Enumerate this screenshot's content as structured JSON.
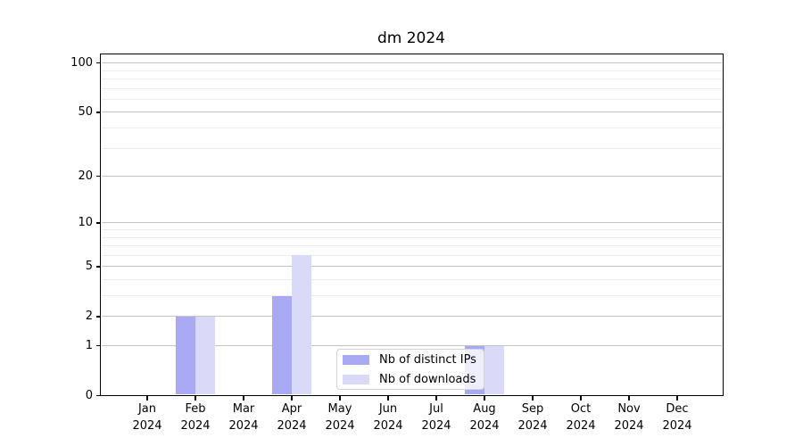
{
  "chart_data": {
    "type": "bar",
    "title": "dm 2024",
    "categories": [
      "Jan",
      "Feb",
      "Mar",
      "Apr",
      "May",
      "Jun",
      "Jul",
      "Aug",
      "Sep",
      "Oct",
      "Nov",
      "Dec"
    ],
    "x_tick_year": "2024",
    "series": [
      {
        "name": "Nb of distinct IPs",
        "color": "#a8a8f3",
        "values": [
          0,
          2,
          0,
          3,
          0,
          0,
          0,
          1,
          0,
          0,
          0,
          0
        ]
      },
      {
        "name": "Nb of downloads",
        "color": "#d9d9f8",
        "values": [
          0,
          2,
          0,
          6,
          0,
          0,
          0,
          1,
          0,
          0,
          0,
          0
        ]
      }
    ],
    "y_axis": {
      "scale": "log1p",
      "tick_values": [
        0,
        1,
        2,
        5,
        10,
        20,
        50,
        100
      ],
      "minor_grid_values": [
        3,
        4,
        6,
        7,
        8,
        9,
        30,
        40,
        60,
        70,
        80,
        90
      ]
    },
    "legend": {
      "position": "inside-bottom-center"
    },
    "grid": "horizontal"
  }
}
